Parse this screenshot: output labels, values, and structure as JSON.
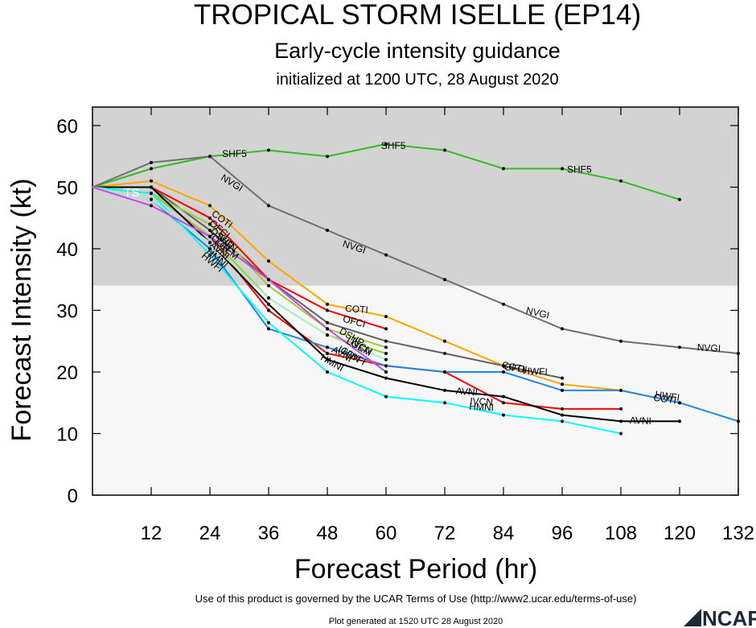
{
  "header": {
    "title": "TROPICAL STORM ISELLE (EP14)",
    "subtitle": "Early-cycle intensity guidance",
    "init": "initialized at 1200 UTC, 28 August 2020"
  },
  "footer": {
    "terms": "Use of this product is governed by the UCAR Terms of Use (http://www2.ucar.edu/terms-of-use)",
    "generated": "Plot generated at 1520 UTC   28 August 2020",
    "logo": "NCAR"
  },
  "colors": {
    "shade_top": "#d3d3d3",
    "shade_bottom": "#f7f7f7",
    "logo": "#1a2a3a"
  },
  "chart_data": {
    "type": "line",
    "title": "TROPICAL STORM ISELLE (EP14)",
    "xlabel": "Forecast Period (hr)",
    "ylabel": "Forecast Intensity (kt)",
    "xlim": [
      0,
      132
    ],
    "ylim": [
      0,
      63
    ],
    "xticks": [
      12,
      24,
      36,
      48,
      60,
      72,
      84,
      96,
      108,
      120,
      132
    ],
    "yticks": [
      0,
      10,
      20,
      30,
      40,
      50,
      60
    ],
    "grid": false,
    "shading": [
      {
        "from": 34,
        "to": 63,
        "color": "#d3d3d3"
      },
      {
        "from": 0,
        "to": 34,
        "color": "#f7f7f7"
      }
    ],
    "ts_label": {
      "text": "TS",
      "x": 8,
      "y": 48.5
    },
    "series": [
      {
        "name": "SHF5",
        "color": "#33bb22",
        "x": [
          0,
          12,
          24,
          36,
          48,
          60,
          72,
          84,
          96,
          108,
          120
        ],
        "y": [
          50,
          53,
          55,
          56,
          55,
          57,
          56,
          53,
          53,
          51,
          48
        ],
        "labels": [
          {
            "x": 29,
            "y": 55.4
          },
          {
            "x": 61.5,
            "y": 56.7
          },
          {
            "x": 99.5,
            "y": 52.9
          }
        ]
      },
      {
        "name": "NVGI",
        "color": "#707070",
        "x": [
          0,
          12,
          24,
          36,
          48,
          60,
          72,
          84,
          96,
          108,
          120,
          132
        ],
        "y": [
          50,
          54,
          55,
          47,
          43,
          39,
          35,
          31,
          27,
          25,
          24,
          23
        ],
        "labels": [
          {
            "x": 28.5,
            "y": 50.7,
            "rot": 32
          },
          {
            "x": 53.5,
            "y": 40.3,
            "rot": 18
          },
          {
            "x": 91,
            "y": 29.6,
            "rot": 13
          },
          {
            "x": 126,
            "y": 23.9,
            "rot": 3
          }
        ]
      },
      {
        "name": "COTI",
        "color": "#ffa500",
        "x": [
          0,
          12,
          24,
          36,
          48,
          60,
          72,
          84,
          96,
          108,
          120
        ],
        "y": [
          50,
          51,
          47,
          38,
          31,
          29,
          25,
          21,
          18,
          17,
          15
        ],
        "labels": [
          {
            "x": 26.5,
            "y": 44.8,
            "rot": 36
          },
          {
            "x": 54,
            "y": 30.2,
            "rot": 4
          },
          {
            "x": 86,
            "y": 20.8,
            "rot": 12
          },
          {
            "x": 117,
            "y": 15.6,
            "rot": 8
          }
        ]
      },
      {
        "name": "OFCI",
        "color": "#606060",
        "x": [
          0,
          12,
          24,
          36,
          48,
          60,
          72,
          84,
          96
        ],
        "y": [
          50,
          50,
          43,
          35,
          28,
          25,
          23,
          21,
          19
        ],
        "labels": [
          {
            "x": 26,
            "y": 43.2,
            "rot": 40
          },
          {
            "x": 53.5,
            "y": 28.2,
            "rot": 15
          },
          {
            "x": 86.5,
            "y": 20.6,
            "rot": 8
          }
        ]
      },
      {
        "name": "DSHP",
        "color": "#ff0000",
        "x": [
          0,
          12,
          24,
          36,
          48,
          60
        ],
        "y": [
          50,
          50,
          45,
          35,
          30,
          27
        ],
        "labels": [
          {
            "x": 26.5,
            "y": 41.7,
            "rot": 40
          },
          {
            "x": 53,
            "y": 25.7,
            "rot": 30
          }
        ]
      },
      {
        "name": "IVCN",
        "color": "#ff0000",
        "x": [
          0,
          12,
          24,
          36,
          48,
          60,
          72,
          84,
          96,
          108
        ],
        "y": [
          50,
          49,
          42,
          30,
          23,
          21,
          20,
          15,
          14,
          14
        ],
        "labels": [
          {
            "x": 27.5,
            "y": 41.0,
            "rot": 40
          },
          {
            "x": 55,
            "y": 24.1,
            "rot": 30
          },
          {
            "x": 79.5,
            "y": 15.2,
            "rot": 3
          }
        ]
      },
      {
        "name": "ICON",
        "color": "#9acd32",
        "x": [
          0,
          12,
          24,
          36,
          48,
          60
        ],
        "y": [
          50,
          49,
          42,
          32,
          26,
          23
        ],
        "labels": [
          {
            "x": 26,
            "y": 41.0,
            "rot": 40
          },
          {
            "x": 52.5,
            "y": 22.9,
            "rot": 30
          }
        ]
      },
      {
        "name": "LGEM",
        "color": "#9acd32",
        "x": [
          0,
          12,
          24,
          36,
          48,
          60
        ],
        "y": [
          50,
          49,
          44,
          34,
          27,
          24
        ],
        "labels": [
          {
            "x": 27.5,
            "y": 40.0,
            "rot": 40
          },
          {
            "x": 54.5,
            "y": 24.1,
            "rot": 30
          }
        ]
      },
      {
        "name": "HWFI",
        "color": "#1e88e5",
        "x": [
          0,
          12,
          24,
          36,
          48,
          60,
          72,
          84,
          96,
          108,
          120,
          132
        ],
        "y": [
          50,
          48,
          40,
          27,
          24,
          21,
          20,
          20,
          17,
          17,
          15,
          12
        ],
        "labels": [
          {
            "x": 24.5,
            "y": 37.8,
            "rot": 40
          },
          {
            "x": 53.5,
            "y": 22.5,
            "rot": 30
          },
          {
            "x": 90.5,
            "y": 20.1,
            "rot": 2
          },
          {
            "x": 117.5,
            "y": 16.1,
            "rot": 8
          }
        ]
      },
      {
        "name": "AVNI",
        "color": "#000000",
        "x": [
          0,
          12,
          24,
          36,
          48,
          60,
          72,
          84,
          96,
          108,
          120
        ],
        "y": [
          50,
          50,
          41,
          31,
          22,
          19,
          17,
          16,
          13,
          12,
          12
        ],
        "labels": [
          {
            "x": 26,
            "y": 39.7,
            "rot": 40
          },
          {
            "x": 51,
            "y": 22.9,
            "rot": 30
          },
          {
            "x": 76.5,
            "y": 16.8,
            "rot": 4
          },
          {
            "x": 112,
            "y": 12.1,
            "rot": 2
          }
        ]
      },
      {
        "name": "HMNI",
        "color": "#00ffff",
        "x": [
          0,
          12,
          24,
          36,
          48,
          60,
          72,
          84,
          96,
          108
        ],
        "y": [
          50,
          49,
          39,
          28,
          20,
          16,
          15,
          13,
          12,
          10
        ],
        "labels": [
          {
            "x": 25.5,
            "y": 38.5,
            "rot": 40
          },
          {
            "x": 49,
            "y": 21.5,
            "rot": 30
          },
          {
            "x": 79.5,
            "y": 14.3,
            "rot": 3
          }
        ]
      },
      {
        "name": "",
        "color": "#aaeecc",
        "x": [
          0,
          12,
          24,
          36,
          48,
          60
        ],
        "y": [
          50,
          48,
          41,
          32,
          26,
          22
        ],
        "labels": []
      },
      {
        "name": "",
        "color": "#cc44ee",
        "x": [
          0,
          12,
          24,
          36,
          48,
          60
        ],
        "y": [
          50,
          47,
          42,
          35,
          27,
          20
        ],
        "labels": []
      }
    ]
  }
}
